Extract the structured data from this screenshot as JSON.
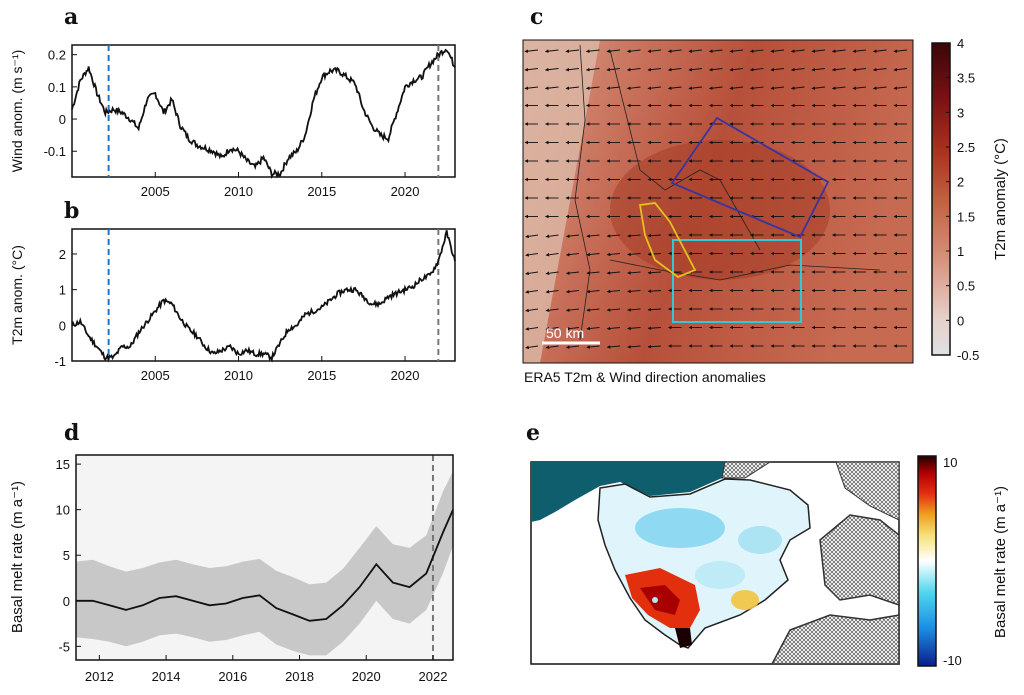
{
  "panels": {
    "a": "a",
    "b": "b",
    "c": "c",
    "d": "d",
    "e": "e"
  },
  "colors": {
    "line": "#111111",
    "dashed_blue": "#1f77d0",
    "dashed_grey": "#777777",
    "band": "#c8c8c8",
    "box_blue": "#3a33a0",
    "box_cyan": "#32c8d8",
    "poly_yellow": "#e6c01c",
    "sea": "#0f5e6e"
  },
  "chart_data": [
    {
      "type": "line",
      "panel": "a",
      "ylabel": "Wind anom. (m s⁻¹)",
      "xlim": [
        2000,
        2023
      ],
      "ylim": [
        -0.18,
        0.23
      ],
      "xticks": [
        2005,
        2010,
        2015,
        2020
      ],
      "yticks": [
        -0.1,
        0,
        0.1,
        0.2
      ],
      "ytick_labels": [
        "-0.1",
        "0",
        "0.1",
        "0.2"
      ],
      "vlines": [
        {
          "x": 2002.2,
          "style": "blue"
        },
        {
          "x": 2022.0,
          "style": "grey"
        }
      ],
      "series": [
        {
          "x": [
            2000,
            2000.5,
            2001,
            2001.5,
            2002,
            2002.5,
            2003,
            2003.5,
            2004,
            2004.5,
            2005,
            2005.5,
            2006,
            2006.5,
            2007,
            2007.5,
            2008,
            2008.5,
            2009,
            2009.5,
            2010,
            2010.5,
            2011,
            2011.5,
            2012,
            2012.5,
            2013,
            2013.5,
            2014,
            2014.5,
            2015,
            2015.5,
            2016,
            2016.5,
            2017,
            2017.5,
            2018,
            2018.5,
            2019,
            2019.5,
            2020,
            2020.5,
            2021,
            2021.5,
            2022,
            2022.5,
            2023
          ],
          "y": [
            0.03,
            0.12,
            0.16,
            0.08,
            0.02,
            0.03,
            0.02,
            0.0,
            -0.03,
            0.06,
            0.08,
            0.02,
            0.06,
            -0.02,
            -0.06,
            -0.08,
            -0.09,
            -0.1,
            -0.12,
            -0.09,
            -0.1,
            -0.13,
            -0.15,
            -0.12,
            -0.17,
            -0.17,
            -0.12,
            -0.1,
            -0.05,
            0.06,
            0.13,
            0.15,
            0.15,
            0.13,
            0.11,
            0.03,
            -0.02,
            -0.05,
            -0.06,
            0.02,
            0.1,
            0.12,
            0.13,
            0.17,
            0.2,
            0.22,
            0.16
          ]
        }
      ]
    },
    {
      "type": "line",
      "panel": "b",
      "ylabel": "T2m anom. (°C)",
      "xlim": [
        2000,
        2023
      ],
      "ylim": [
        -1.0,
        2.7
      ],
      "xticks": [
        2005,
        2010,
        2015,
        2020
      ],
      "yticks": [
        -1,
        0,
        1,
        2
      ],
      "ytick_labels": [
        "-1",
        "0",
        "1",
        "2"
      ],
      "vlines": [
        {
          "x": 2002.2,
          "style": "blue"
        },
        {
          "x": 2022.0,
          "style": "grey"
        }
      ],
      "series": [
        {
          "x": [
            2000,
            2000.5,
            2001,
            2001.5,
            2002,
            2002.5,
            2003,
            2003.5,
            2004,
            2004.5,
            2005,
            2005.5,
            2006,
            2006.5,
            2007,
            2007.5,
            2008,
            2008.5,
            2009,
            2009.5,
            2010,
            2010.5,
            2011,
            2011.5,
            2012,
            2012.5,
            2013,
            2013.5,
            2014,
            2014.5,
            2015,
            2015.5,
            2016,
            2016.5,
            2017,
            2017.5,
            2018,
            2018.5,
            2019,
            2019.5,
            2020,
            2020.5,
            2021,
            2021.5,
            2022,
            2022.5,
            2023
          ],
          "y": [
            0.0,
            0.1,
            -0.3,
            -0.6,
            -0.9,
            -0.9,
            -0.6,
            -0.6,
            -0.2,
            0.1,
            0.4,
            0.7,
            0.6,
            0.2,
            -0.1,
            -0.3,
            -0.6,
            -0.8,
            -0.7,
            -0.6,
            -0.8,
            -0.7,
            -0.8,
            -0.8,
            -0.9,
            -0.5,
            -0.1,
            0.0,
            0.3,
            0.4,
            0.5,
            0.7,
            0.9,
            1.0,
            1.0,
            0.8,
            0.6,
            0.6,
            0.8,
            0.9,
            1.0,
            1.1,
            1.3,
            1.4,
            1.8,
            2.6,
            1.8
          ]
        }
      ]
    },
    {
      "type": "heatmap",
      "panel": "c",
      "caption": "ERA5 T2m & Wind direction anomalies",
      "scalebar": "50 km",
      "colorbar": {
        "label": "T2m anomaly (°C)",
        "min": -0.5,
        "max": 4,
        "ticks": [
          -0.5,
          0,
          0.5,
          1,
          1.5,
          2,
          2.5,
          3,
          3.5,
          4
        ],
        "tick_labels": [
          "-0.5",
          "0",
          "0.5",
          "1",
          "1.5",
          "2",
          "2.5",
          "3",
          "3.5",
          "4"
        ],
        "colors": [
          "#dfe1e3",
          "#e6cfc8",
          "#d58e78",
          "#c0603f",
          "#a9301f",
          "#7a1214",
          "#3a0709"
        ]
      },
      "wind_direction": "westward",
      "field_value_typical": 1.8
    },
    {
      "type": "area",
      "panel": "d",
      "ylabel": "Basal melt rate (m a⁻¹)",
      "xlim": [
        2011.3,
        2022.6
      ],
      "ylim": [
        -6.5,
        16
      ],
      "xticks": [
        2012,
        2014,
        2016,
        2018,
        2020,
        2022
      ],
      "yticks": [
        -5,
        0,
        5,
        10,
        15
      ],
      "ytick_labels": [
        "-5",
        "0",
        "5",
        "10",
        "15"
      ],
      "vlines": [
        {
          "x": 2022.0,
          "style": "grey"
        }
      ],
      "x": [
        2011.3,
        2011.8,
        2012.3,
        2012.8,
        2013.3,
        2013.8,
        2014.3,
        2014.8,
        2015.3,
        2015.8,
        2016.3,
        2016.8,
        2017.3,
        2017.8,
        2018.3,
        2018.8,
        2019.3,
        2019.8,
        2020.3,
        2020.8,
        2021.3,
        2021.8,
        2022.3,
        2022.6
      ],
      "mean": [
        0.0,
        0.0,
        -0.5,
        -1.0,
        -0.5,
        0.3,
        0.5,
        0.0,
        -0.5,
        -0.3,
        0.3,
        0.6,
        -0.8,
        -1.5,
        -2.2,
        -2.0,
        -0.5,
        1.5,
        4.0,
        2.0,
        1.5,
        3.0,
        7.5,
        10.0
      ],
      "lower": [
        -4.0,
        -4.2,
        -4.5,
        -5.0,
        -4.5,
        -3.8,
        -3.6,
        -4.0,
        -4.5,
        -4.3,
        -3.8,
        -3.4,
        -4.8,
        -5.5,
        -6.0,
        -6.0,
        -4.5,
        -2.5,
        0.0,
        -2.0,
        -2.5,
        -1.0,
        3.0,
        6.0
      ],
      "upper": [
        4.3,
        4.5,
        3.8,
        3.2,
        3.6,
        4.2,
        4.5,
        4.0,
        3.6,
        3.8,
        4.3,
        4.6,
        3.3,
        2.6,
        1.8,
        2.0,
        3.5,
        5.8,
        8.2,
        6.2,
        5.8,
        7.2,
        12.0,
        14.2
      ]
    },
    {
      "type": "heatmap",
      "panel": "e",
      "colorbar": {
        "label": "Basal melt rate (m a⁻¹)",
        "min": -10,
        "max": 10,
        "ticks": [
          -10,
          10
        ],
        "tick_labels": [
          "-10",
          "10"
        ],
        "colors": [
          "#0b1d8c",
          "#1a8fe6",
          "#4fd6ec",
          "#ffffff",
          "#f5e27a",
          "#f0a020",
          "#e43012",
          "#b00000",
          "#200000"
        ]
      }
    }
  ]
}
